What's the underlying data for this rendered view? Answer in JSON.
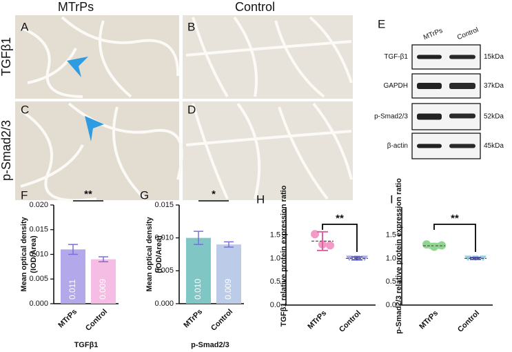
{
  "panels": {
    "letters": [
      "A",
      "B",
      "C",
      "D",
      "E"
    ],
    "columns": [
      "MTrPs",
      "Control"
    ],
    "rows": [
      "TGFβ1",
      "p-Smad2/3"
    ]
  },
  "blot": {
    "lanes": [
      "MTrPs",
      "Control"
    ],
    "bands": [
      {
        "protein": "TGF-β1",
        "size": "15kDa"
      },
      {
        "protein": "GAPDH",
        "size": "37kDa"
      },
      {
        "protein": "p-Smad2/3",
        "size": "52kDa"
      },
      {
        "protein": "β-actin",
        "size": "45kDa"
      }
    ]
  },
  "chart_data": [
    {
      "type": "bar",
      "panel": "F",
      "y_label": [
        "Mean optical density",
        "(IOD/Area)"
      ],
      "x_label": "TGFβ1",
      "categories": [
        "MTrPs",
        "Control"
      ],
      "values": [
        0.011,
        0.009
      ],
      "errors": [
        0.001,
        0.0005
      ],
      "colors": [
        "#b3a9ea",
        "#f5bde3"
      ],
      "significance": "**",
      "ylim": [
        0,
        0.02
      ],
      "yticks": [
        {
          "value": 0,
          "label": "0.000"
        },
        {
          "value": 0.005,
          "label": "0.005"
        },
        {
          "value": 0.01,
          "label": "0.010"
        },
        {
          "value": 0.015,
          "label": "0.015"
        },
        {
          "value": 0.02,
          "label": "0.020"
        }
      ]
    },
    {
      "type": "bar",
      "panel": "G",
      "y_label": [
        "Mean optical density",
        "(IOD/Area)"
      ],
      "x_label": "p-Smad2/3",
      "categories": [
        "MTrPs",
        "Control"
      ],
      "values": [
        0.01,
        0.009
      ],
      "value_labels": [
        "0.010",
        "0.009"
      ],
      "errors": [
        0.001,
        0.0004
      ],
      "colors": [
        "#7fc6c4",
        "#bccbe8"
      ],
      "significance": "*",
      "ylim": [
        0,
        0.015
      ],
      "yticks": [
        {
          "value": 0,
          "label": "0.000"
        },
        {
          "value": 0.005,
          "label": "0.005"
        },
        {
          "value": 0.01,
          "label": "0.010"
        },
        {
          "value": 0.015,
          "label": "0.015"
        }
      ]
    },
    {
      "type": "dot",
      "panel": "H",
      "y_label": [
        "TGFβ1 relative protein expression ratio"
      ],
      "categories": [
        "MTrPs",
        "Control"
      ],
      "points": [
        [
          1.52,
          1.3,
          1.28
        ],
        [
          1.0,
          1.0,
          1.0
        ]
      ],
      "means": [
        1.37,
        1.0
      ],
      "sds": [
        0.2,
        0.03
      ],
      "colors": [
        "#f29ac6",
        "#a9a7ee"
      ],
      "significance": "**",
      "ylim": [
        0,
        2.1
      ],
      "yticks": [
        {
          "value": 0,
          "label": "0.0"
        },
        0.5,
        {
          "value": 1,
          "label": "1.0"
        },
        1.5
      ]
    },
    {
      "type": "dot",
      "panel": "I",
      "y_label": [
        "p-Smad2/3 relative protein expression ratio"
      ],
      "categories": [
        "MTrPs",
        "Control"
      ],
      "points": [
        [
          1.3,
          1.25,
          1.28
        ],
        [
          1.0,
          1.0,
          1.0
        ]
      ],
      "means": [
        1.27,
        1.0
      ],
      "sds": [
        0.05,
        0.02
      ],
      "colors": [
        "#8fd68f",
        "#8fd1e6"
      ],
      "significance": "**",
      "ylim": [
        0,
        2.1
      ],
      "yticks": [
        {
          "value": 0,
          "label": "0.0"
        },
        0.5,
        {
          "value": 1,
          "label": "1.0"
        },
        1.5
      ]
    }
  ]
}
